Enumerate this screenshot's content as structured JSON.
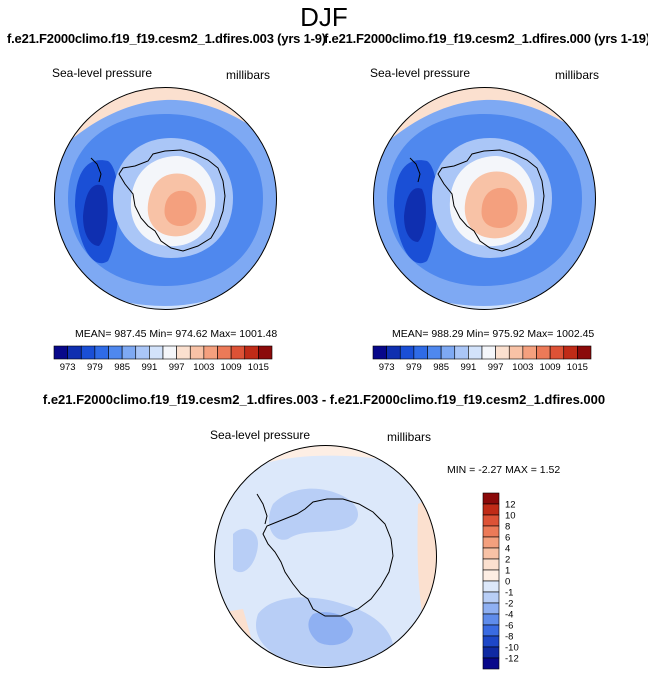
{
  "figure": {
    "season": "DJF",
    "left_title": "f.e21.F2000climo.f19_f19.cesm2_1.dfires.003 (yrs 1-9)",
    "right_title": "f.e21.F2000climo.f19_f19.cesm2_1.dfires.000 (yrs 1-19)",
    "diff_title": "f.e21.F2000climo.f19_f19.cesm2_1.dfires.003 - f.e21.F2000climo.f19_f19.cesm2_1.dfires.000"
  },
  "panels": {
    "left": {
      "variable": "Sea-level pressure",
      "units": "millibars",
      "stats": "MEAN= 987.45  Min= 974.62  Max= 1001.48"
    },
    "right": {
      "variable": "Sea-level pressure",
      "units": "millibars",
      "stats": "MEAN= 988.29  Min= 975.92  Max= 1002.45"
    },
    "diff": {
      "variable": "Sea-level pressure",
      "units": "millibars",
      "stats": "MIN =  -2.27 MAX =   1.52"
    }
  },
  "chart_data": [
    {
      "type": "heatmap",
      "projection": "south-polar-stereographic",
      "title": "Sea-level pressure",
      "units": "millibars",
      "mean": 987.45,
      "min": 974.62,
      "max": 1001.48,
      "colorbar": {
        "orientation": "horizontal",
        "tick_labels": [
          "973",
          "979",
          "985",
          "991",
          "997",
          "1003",
          "1009",
          "1015"
        ],
        "levels": [
          973,
          976,
          979,
          982,
          985,
          988,
          991,
          994,
          997,
          1000,
          1003,
          1006,
          1009,
          1012,
          1015
        ],
        "colors": [
          "#08088a",
          "#0f2fb0",
          "#1a4fd6",
          "#2f6be6",
          "#4f88ee",
          "#7ea9f3",
          "#aac6f7",
          "#d3e3fb",
          "#f4f6fa",
          "#fbe0cf",
          "#f8c2a6",
          "#f4a07e",
          "#ec7a58",
          "#dd5236",
          "#c02b17",
          "#8b0a0a"
        ]
      }
    },
    {
      "type": "heatmap",
      "projection": "south-polar-stereographic",
      "title": "Sea-level pressure",
      "units": "millibars",
      "mean": 988.29,
      "min": 975.92,
      "max": 1002.45,
      "colorbar": {
        "orientation": "horizontal",
        "tick_labels": [
          "973",
          "979",
          "985",
          "991",
          "997",
          "1003",
          "1009",
          "1015"
        ],
        "levels": [
          973,
          976,
          979,
          982,
          985,
          988,
          991,
          994,
          997,
          1000,
          1003,
          1006,
          1009,
          1012,
          1015
        ],
        "colors": [
          "#08088a",
          "#0f2fb0",
          "#1a4fd6",
          "#2f6be6",
          "#4f88ee",
          "#7ea9f3",
          "#aac6f7",
          "#d3e3fb",
          "#f4f6fa",
          "#fbe0cf",
          "#f8c2a6",
          "#f4a07e",
          "#ec7a58",
          "#dd5236",
          "#c02b17",
          "#8b0a0a"
        ]
      }
    },
    {
      "type": "heatmap",
      "projection": "south-polar-stereographic",
      "title": "Sea-level pressure",
      "units": "millibars",
      "min": -2.27,
      "max": 1.52,
      "colorbar": {
        "orientation": "vertical",
        "tick_labels": [
          "12",
          "10",
          "8",
          "6",
          "4",
          "2",
          "1",
          "0",
          "-1",
          "-2",
          "-4",
          "-6",
          "-8",
          "-10",
          "-12"
        ],
        "levels": [
          12,
          10,
          8,
          6,
          4,
          2,
          1,
          0,
          -1,
          -2,
          -4,
          -6,
          -8,
          -10,
          -12
        ],
        "colors": [
          "#8b0a0a",
          "#c02b17",
          "#dd5236",
          "#ec7a58",
          "#f4a07e",
          "#f8c2a6",
          "#fbe0cf",
          "#fdeee4",
          "#dce8fa",
          "#b8cef6",
          "#8fb0f2",
          "#5f8ceb",
          "#3a6be2",
          "#1d47c8",
          "#0f2aa3",
          "#08088a"
        ]
      }
    }
  ]
}
